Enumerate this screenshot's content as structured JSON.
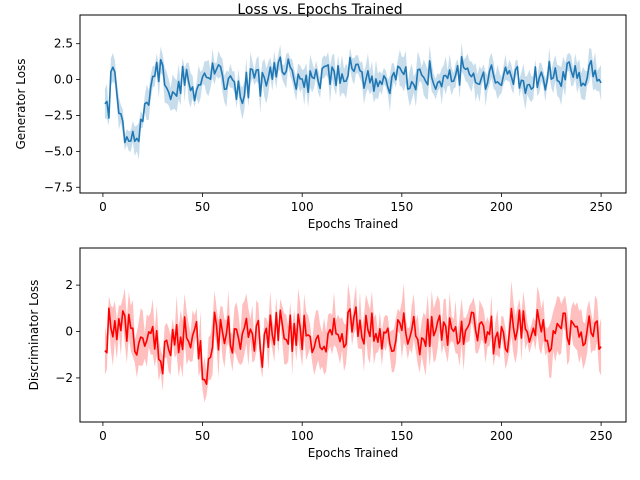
{
  "title": "Loss vs. Epochs Trained",
  "chart_data": [
    {
      "type": "line",
      "color": "#1f77b4",
      "band_color": "#1f77b4",
      "xlabel": "Epochs Trained",
      "ylabel": "Generator Loss",
      "xlim": [
        -11.5,
        262.5
      ],
      "ylim": [
        -7.9,
        4.5
      ],
      "xticks": [
        0,
        50,
        100,
        150,
        200,
        250
      ],
      "yticks": [
        -7.5,
        -5.0,
        -2.5,
        0.0,
        2.5
      ],
      "ytick_labels": [
        "−7.5",
        "−5.0",
        "−2.5",
        "0.0",
        "2.5"
      ],
      "grid": false,
      "keypoints": [
        [
          1,
          -1.6
        ],
        [
          3,
          -2.1
        ],
        [
          5,
          0.9
        ],
        [
          7,
          -1.2
        ],
        [
          9,
          -2.8
        ],
        [
          11,
          -4.0
        ],
        [
          13,
          -4.8
        ],
        [
          15,
          -3.8
        ],
        [
          17,
          -4.3
        ],
        [
          19,
          -2.9
        ],
        [
          21,
          -2.2
        ],
        [
          23,
          -1.5
        ],
        [
          25,
          -0.6
        ],
        [
          27,
          0.3
        ],
        [
          29,
          1.2
        ],
        [
          31,
          0.1
        ],
        [
          33,
          -0.6
        ],
        [
          36,
          -1.2
        ],
        [
          40,
          -0.2
        ],
        [
          45,
          -0.8
        ],
        [
          50,
          0.3
        ],
        [
          55,
          0.7
        ],
        [
          60,
          0.4
        ],
        [
          65,
          -0.5
        ],
        [
          70,
          -0.9
        ],
        [
          75,
          0.2
        ],
        [
          80,
          -0.4
        ],
        [
          85,
          0.5
        ],
        [
          90,
          0.8
        ],
        [
          95,
          0.3
        ],
        [
          100,
          0.0
        ],
        [
          105,
          -0.3
        ],
        [
          110,
          0.4
        ],
        [
          115,
          0.8
        ],
        [
          120,
          0.2
        ],
        [
          125,
          0.6
        ],
        [
          130,
          0.3
        ],
        [
          135,
          0.1
        ],
        [
          140,
          -0.2
        ],
        [
          145,
          0.0
        ],
        [
          150,
          0.2
        ],
        [
          155,
          -0.5
        ],
        [
          160,
          0.1
        ],
        [
          165,
          0.4
        ],
        [
          170,
          -0.2
        ],
        [
          175,
          0.2
        ],
        [
          180,
          0.5
        ],
        [
          185,
          0.3
        ],
        [
          190,
          -0.1
        ],
        [
          195,
          0.0
        ],
        [
          200,
          0.4
        ],
        [
          205,
          0.1
        ],
        [
          210,
          -0.3
        ],
        [
          215,
          0.2
        ],
        [
          220,
          0.3
        ],
        [
          225,
          0.1
        ],
        [
          230,
          0.4
        ],
        [
          235,
          0.6
        ],
        [
          240,
          0.2
        ],
        [
          245,
          0.9
        ],
        [
          248,
          0.3
        ],
        [
          250,
          -0.7
        ]
      ],
      "noise": 0.8,
      "band_width": 0.9,
      "seed": 7
    },
    {
      "type": "line",
      "color": "#ff0000",
      "band_color": "#ff0000",
      "xlabel": "Epochs Trained",
      "ylabel": "Discriminator Loss",
      "xlim": [
        -11.5,
        262.5
      ],
      "ylim": [
        -3.9,
        3.6
      ],
      "xticks": [
        0,
        50,
        100,
        150,
        200,
        250
      ],
      "yticks": [
        -2,
        0,
        2
      ],
      "ytick_labels": [
        "−2",
        "0",
        "2"
      ],
      "grid": false,
      "keypoints": [
        [
          1,
          -0.4
        ],
        [
          3,
          0.3
        ],
        [
          6,
          0.2
        ],
        [
          10,
          0.4
        ],
        [
          14,
          0.0
        ],
        [
          18,
          -0.3
        ],
        [
          22,
          -0.5
        ],
        [
          26,
          -0.8
        ],
        [
          30,
          -1.0
        ],
        [
          35,
          -0.3
        ],
        [
          40,
          -0.2
        ],
        [
          45,
          0.2
        ],
        [
          49,
          -1.2
        ],
        [
          51,
          -1.8
        ],
        [
          55,
          0.0
        ],
        [
          60,
          -0.2
        ],
        [
          65,
          0.1
        ],
        [
          70,
          -0.3
        ],
        [
          75,
          0.3
        ],
        [
          80,
          -0.6
        ],
        [
          85,
          -0.2
        ],
        [
          90,
          0.4
        ],
        [
          95,
          -0.1
        ],
        [
          100,
          0.0
        ],
        [
          105,
          -0.3
        ],
        [
          110,
          -0.6
        ],
        [
          115,
          0.2
        ],
        [
          120,
          -0.1
        ],
        [
          125,
          0.2
        ],
        [
          130,
          0.1
        ],
        [
          135,
          0.3
        ],
        [
          140,
          -0.4
        ],
        [
          145,
          -0.1
        ],
        [
          150,
          0.2
        ],
        [
          155,
          0.0
        ],
        [
          160,
          -0.2
        ],
        [
          165,
          0.3
        ],
        [
          170,
          0.1
        ],
        [
          175,
          -0.2
        ],
        [
          180,
          0.0
        ],
        [
          185,
          0.1
        ],
        [
          190,
          -0.2
        ],
        [
          195,
          0.1
        ],
        [
          200,
          -0.3
        ],
        [
          205,
          0.2
        ],
        [
          210,
          0.1
        ],
        [
          215,
          -0.1
        ],
        [
          220,
          0.2
        ],
        [
          225,
          -0.2
        ],
        [
          230,
          0.1
        ],
        [
          235,
          -0.3
        ],
        [
          240,
          -0.1
        ],
        [
          245,
          0.0
        ],
        [
          248,
          0.3
        ],
        [
          250,
          -1.6
        ]
      ],
      "noise": 0.75,
      "band_width": 0.85,
      "seed": 13
    }
  ]
}
